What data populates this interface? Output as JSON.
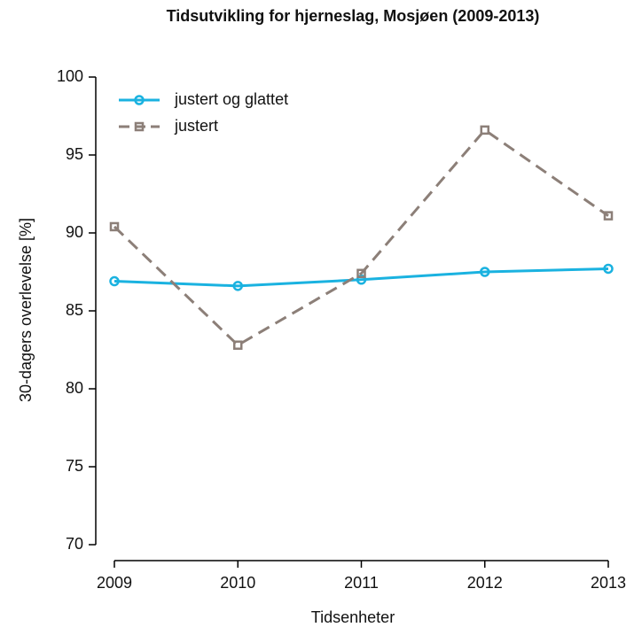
{
  "chart_data": {
    "type": "line",
    "title": "Tidsutvikling for hjerneslag, Mosjøen (2009-2013)",
    "x_label": "Tidsenheter",
    "y_label": "30-dagers overlevelse [%]",
    "categories": [
      "2009",
      "2010",
      "2011",
      "2012",
      "2013"
    ],
    "series": [
      {
        "name": "justert og glattet",
        "color": "#1ab2e0",
        "marker": "circle",
        "dashed": false,
        "values": [
          86.9,
          86.6,
          87.0,
          87.5,
          87.7
        ]
      },
      {
        "name": "justert",
        "color": "#8c7f78",
        "marker": "square",
        "dashed": true,
        "values": [
          90.4,
          82.8,
          87.4,
          96.6,
          91.1
        ]
      }
    ],
    "ylim": [
      70,
      100
    ],
    "yticks": [
      70,
      75,
      80,
      85,
      90,
      95,
      100
    ],
    "legend": "top-left"
  }
}
